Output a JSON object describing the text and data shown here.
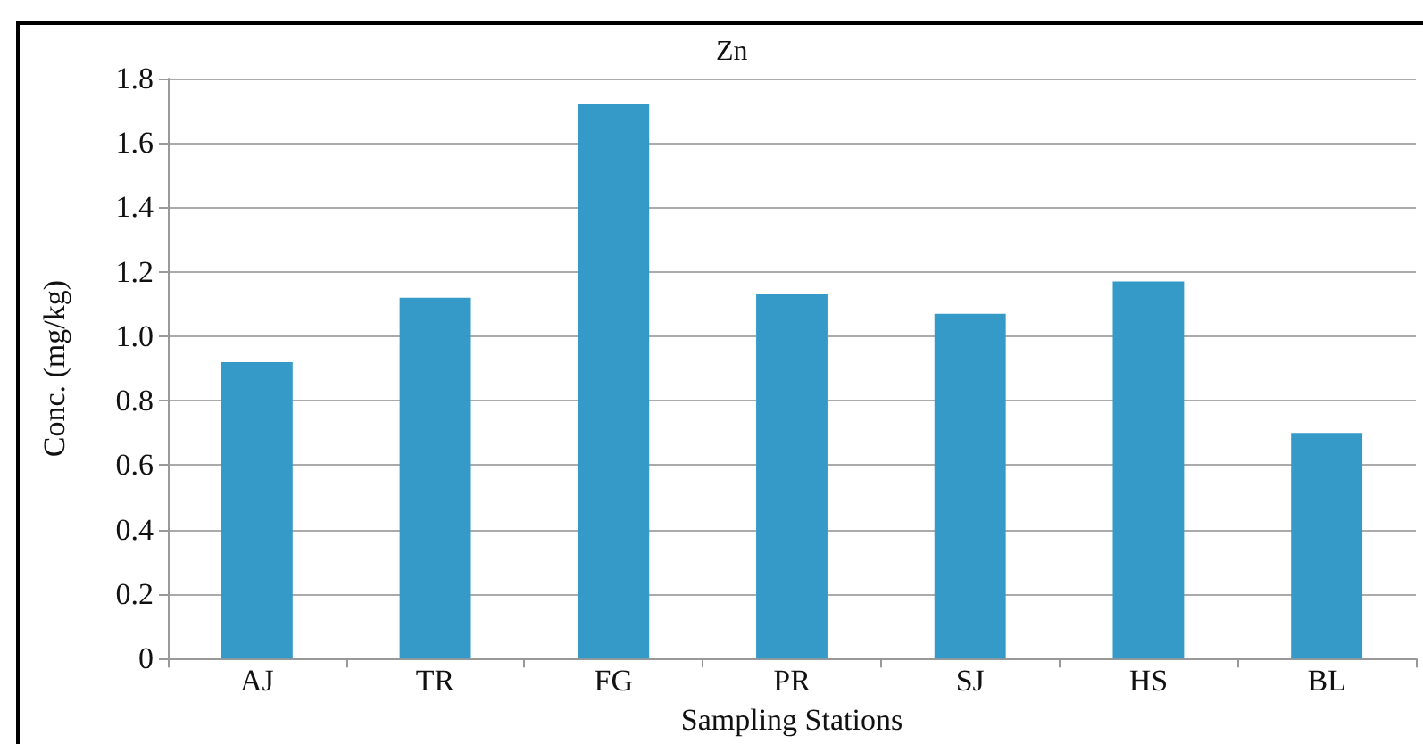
{
  "chart_data": {
    "type": "bar",
    "title": "Zn",
    "xlabel": "Sampling Stations",
    "ylabel": "Conc. (mg/kg)",
    "categories": [
      "AJ",
      "TR",
      "FG",
      "PR",
      "SJ",
      "HS",
      "BL"
    ],
    "values": [
      0.92,
      1.12,
      1.72,
      1.13,
      1.07,
      1.17,
      0.7
    ],
    "color": "#369ac9",
    "ylim": [
      0,
      1.8
    ],
    "yticks": [
      0,
      {
        "value": 0.2,
        "label": "0.2"
      },
      {
        "value": 0.4,
        "label": "0.4"
      },
      {
        "value": 0.6,
        "label": "0.6"
      },
      {
        "value": 0.8,
        "label": "0.8"
      },
      {
        "value": 1,
        "label": "1.0"
      },
      {
        "value": 1.2,
        "label": "1.2"
      },
      {
        "value": 1.4,
        "label": "1.4"
      },
      {
        "value": 1.6,
        "label": "1.6"
      },
      {
        "value": 1.8,
        "label": "1.8"
      }
    ],
    "grid": "y"
  }
}
